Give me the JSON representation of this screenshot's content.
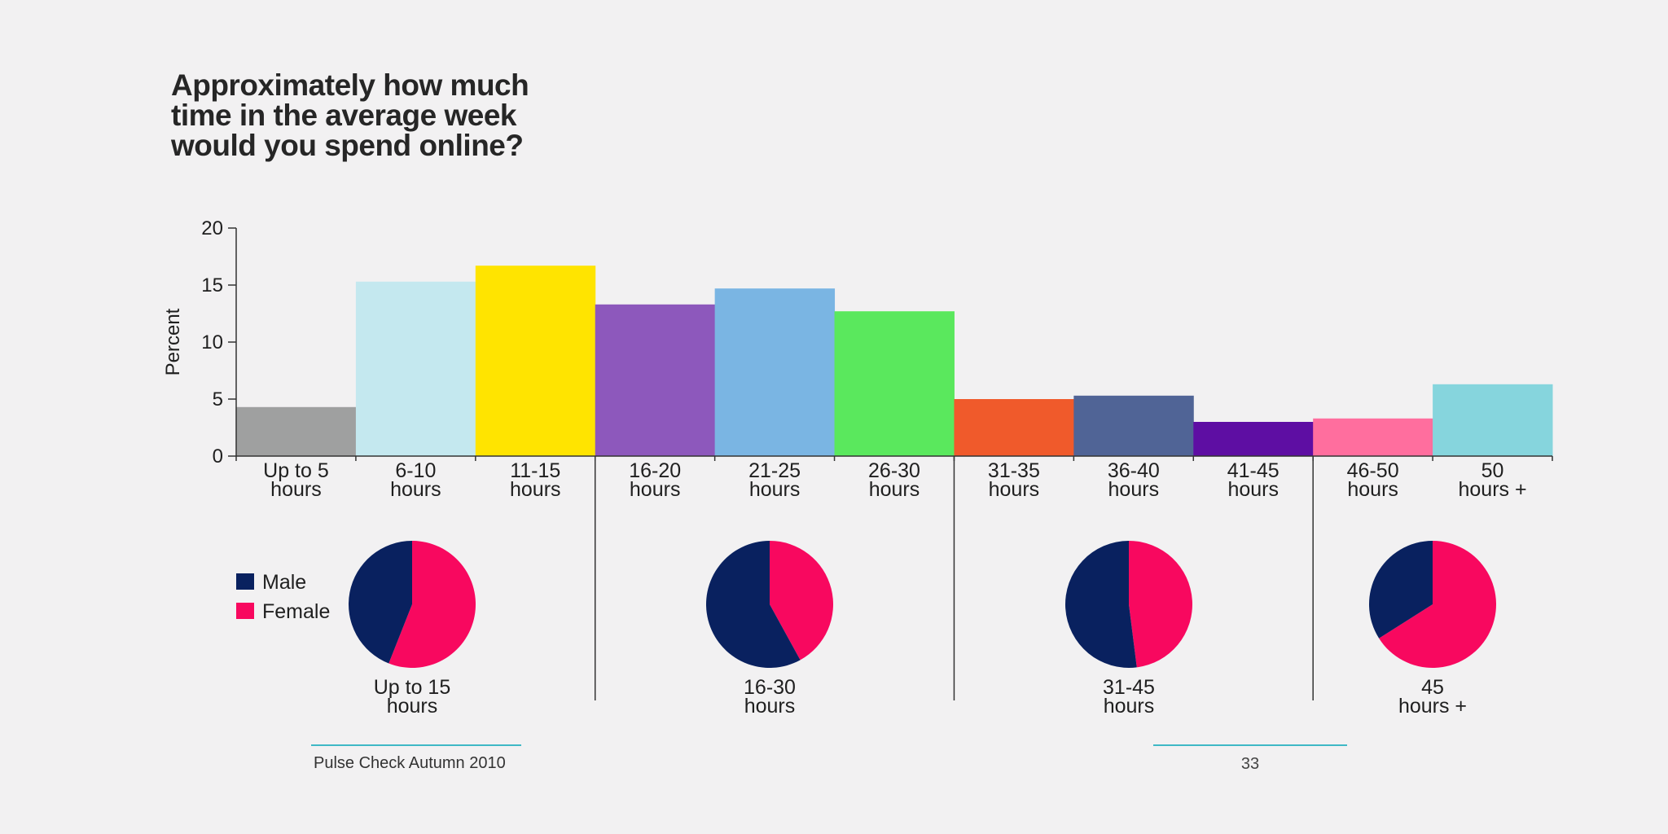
{
  "page": {
    "title": "Approximately how much\ntime in the average week\nwould you spend online?",
    "footer_text": "Pulse Check Autumn 2010",
    "page_number": "33",
    "accent_color": "#3fb8c6"
  },
  "chart_data": [
    {
      "type": "bar",
      "ylabel": "Percent",
      "ylim": [
        0,
        20
      ],
      "yticks": [
        0,
        5,
        10,
        15,
        20
      ],
      "grid": false,
      "categories": [
        [
          "Up to 5",
          "hours"
        ],
        [
          "6-10",
          "hours"
        ],
        [
          "11-15",
          "hours"
        ],
        [
          "16-20",
          "hours"
        ],
        [
          "21-25",
          "hours"
        ],
        [
          "26-30",
          "hours"
        ],
        [
          "31-35",
          "hours"
        ],
        [
          "36-40",
          "hours"
        ],
        [
          "41-45",
          "hours"
        ],
        [
          "46-50",
          "hours"
        ],
        [
          "50",
          "hours +"
        ]
      ],
      "values": [
        4.3,
        15.3,
        16.7,
        13.3,
        14.7,
        12.7,
        5.0,
        5.3,
        3.0,
        3.3,
        6.3
      ],
      "colors": [
        "#9fa0a0",
        "#c4e8ef",
        "#ffe400",
        "#8d58bc",
        "#7ab5e3",
        "#5ae85d",
        "#f05a2b",
        "#506496",
        "#5e0ea3",
        "#ff6e9e",
        "#86d5dd"
      ]
    },
    {
      "type": "pie",
      "legend": {
        "position": "left",
        "entries": [
          {
            "name": "Male",
            "color": "#09215f"
          },
          {
            "name": "Female",
            "color": "#f8085f"
          }
        ]
      },
      "groups": [
        {
          "label": [
            "Up to 15",
            "hours"
          ],
          "male": 44,
          "female": 56
        },
        {
          "label": [
            "16-30",
            "hours"
          ],
          "male": 58,
          "female": 42
        },
        {
          "label": [
            "31-45",
            "hours"
          ],
          "male": 52,
          "female": 48
        },
        {
          "label": [
            "45",
            "hours +"
          ],
          "male": 34,
          "female": 66
        }
      ]
    }
  ]
}
